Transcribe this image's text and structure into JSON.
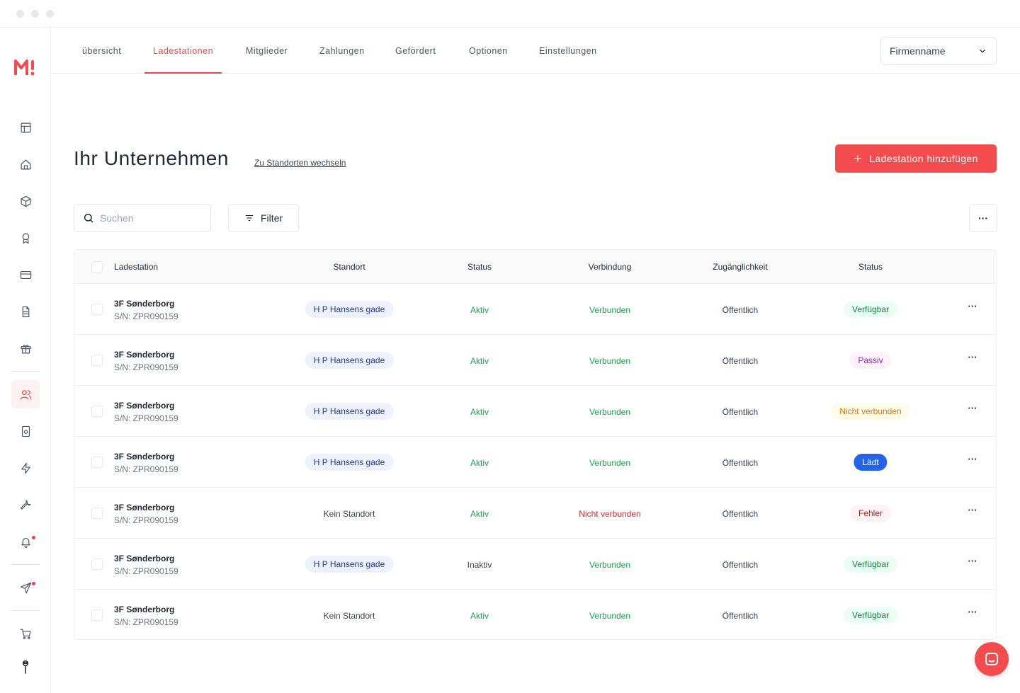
{
  "nav": {
    "tabs": [
      {
        "label": "übersicht"
      },
      {
        "label": "Ladestationen"
      },
      {
        "label": "Mitglieder"
      },
      {
        "label": "Zahlungen"
      },
      {
        "label": "Gefördert"
      },
      {
        "label": "Optionen"
      },
      {
        "label": "Einstellungen"
      }
    ],
    "active_tab": "Ladestationen",
    "company_select": "Firmenname"
  },
  "sidebar": {
    "logo": "M!",
    "icons": [
      "layout-icon",
      "home-icon",
      "box-icon",
      "award-icon",
      "credit-card-icon",
      "document-icon",
      "gift-icon",
      "users-icon",
      "device-icon",
      "lightning-icon",
      "wrench-icon",
      "bell-icon",
      "send-icon",
      "cart-icon",
      "avatar-icon"
    ],
    "active_icon": "users-icon"
  },
  "page": {
    "title": "Ihr Unternehmen",
    "switch_link": "Zu Standorten wechseln",
    "add_button": "Ladestation hinzufügen",
    "search_placeholder": "Suchen",
    "filter_label": "Filter",
    "more_label": "···"
  },
  "table": {
    "headers": {
      "station": "Ladestation",
      "location": "Standort",
      "status": "Status",
      "connection": "Verbindung",
      "access": "Zugänglichkeit",
      "state": "Status"
    },
    "rows": [
      {
        "name": "3F Sønderborg",
        "serial": "S/N: ZPR090159",
        "location": "H P Hansens gade",
        "status": "Aktiv",
        "connection": "Verbunden",
        "access": "Öffentlich",
        "state": "Verfügbar"
      },
      {
        "name": "3F Sønderborg",
        "serial": "S/N: ZPR090159",
        "location": "H P Hansens gade",
        "status": "Aktiv",
        "connection": "Verbunden",
        "access": "Öffentlich",
        "state": "Passiv"
      },
      {
        "name": "3F Sønderborg",
        "serial": "S/N: ZPR090159",
        "location": "H P Hansens gade",
        "status": "Aktiv",
        "connection": "Verbunden",
        "access": "Öffentlich",
        "state": "Nicht verbunden"
      },
      {
        "name": "3F Sønderborg",
        "serial": "S/N: ZPR090159",
        "location": "H P Hansens gade",
        "status": "Aktiv",
        "connection": "Verbunden",
        "access": "Öffentlich",
        "state": "Lädt"
      },
      {
        "name": "3F Sønderborg",
        "serial": "S/N: ZPR090159",
        "location": "Kein Standort",
        "status": "Aktiv",
        "connection": "Nicht verbunden",
        "access": "Öffentlich",
        "state": "Fehler"
      },
      {
        "name": "3F Sønderborg",
        "serial": "S/N: ZPR090159",
        "location": "H P Hansens gade",
        "status": "Inaktiv",
        "connection": "Verbunden",
        "access": "Öffentlich",
        "state": "Verfügbar"
      },
      {
        "name": "3F Sønderborg",
        "serial": "S/N: ZPR090159",
        "location": "Kein Standort",
        "status": "Aktiv",
        "connection": "Verbunden",
        "access": "Öffentlich",
        "state": "Verfügbar"
      }
    ],
    "row_menu": "···"
  },
  "colors": {
    "accent": "#f34b4e",
    "green": "#16a34a",
    "red": "#dc2626",
    "location_badge_bg": "#eef2ff",
    "location_badge_text": "#1e3a8a"
  }
}
